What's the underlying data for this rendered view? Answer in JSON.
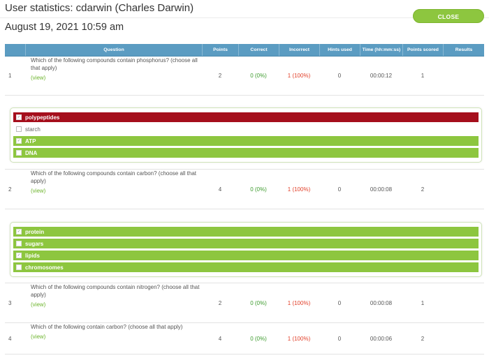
{
  "header": {
    "title": "User statistics: cdarwin (Charles Darwin)",
    "date": "August 19, 2021 10:59 am",
    "close_label": "CLOSE"
  },
  "columns": [
    "Question",
    "Points",
    "Correct",
    "Incorrect",
    "Hints used",
    "Time (hh:mm:ss)",
    "Points scored",
    "Results"
  ],
  "rows": [
    {
      "num": "1",
      "question": "Which of the following compounds contain phosphorus? (choose all that apply)",
      "view": "(view)",
      "points": "2",
      "correct": "0 (0%)",
      "incorrect": "1 (100%)",
      "hints": "0",
      "time": "00:00:12",
      "scored": "1",
      "results": "",
      "answers": [
        {
          "label": "polypeptides",
          "state": "red",
          "checked": true
        },
        {
          "label": "starch",
          "state": "plain",
          "checked": false
        },
        {
          "label": "ATP",
          "state": "green",
          "checked": true
        },
        {
          "label": "DNA",
          "state": "green",
          "checked": false
        }
      ]
    },
    {
      "num": "2",
      "question": "Which of the following compounds contain carbon? (choose all that apply)",
      "view": "(view)",
      "points": "4",
      "correct": "0 (0%)",
      "incorrect": "1 (100%)",
      "hints": "0",
      "time": "00:00:08",
      "scored": "2",
      "results": "",
      "answers": [
        {
          "label": "protein",
          "state": "green",
          "checked": true
        },
        {
          "label": "sugars",
          "state": "green",
          "checked": false
        },
        {
          "label": "lipids",
          "state": "green",
          "checked": true
        },
        {
          "label": "chromosomes",
          "state": "green",
          "checked": false
        }
      ]
    },
    {
      "num": "3",
      "question": "Which of the following compounds contain nitrogen? (choose all that apply)",
      "view": "(view)",
      "points": "2",
      "correct": "0 (0%)",
      "incorrect": "1 (100%)",
      "hints": "0",
      "time": "00:00:08",
      "scored": "1",
      "results": ""
    },
    {
      "num": "4",
      "question": "Which of the following contain carbon? (choose all that apply)",
      "view": "(view)",
      "points": "4",
      "correct": "0 (0%)",
      "incorrect": "1 (100%)",
      "hints": "0",
      "time": "00:00:06",
      "scored": "2",
      "results": ""
    }
  ],
  "colors": {
    "header_blue": "#5b9cc2",
    "green": "#8dc63f",
    "red": "#a50f1c"
  }
}
